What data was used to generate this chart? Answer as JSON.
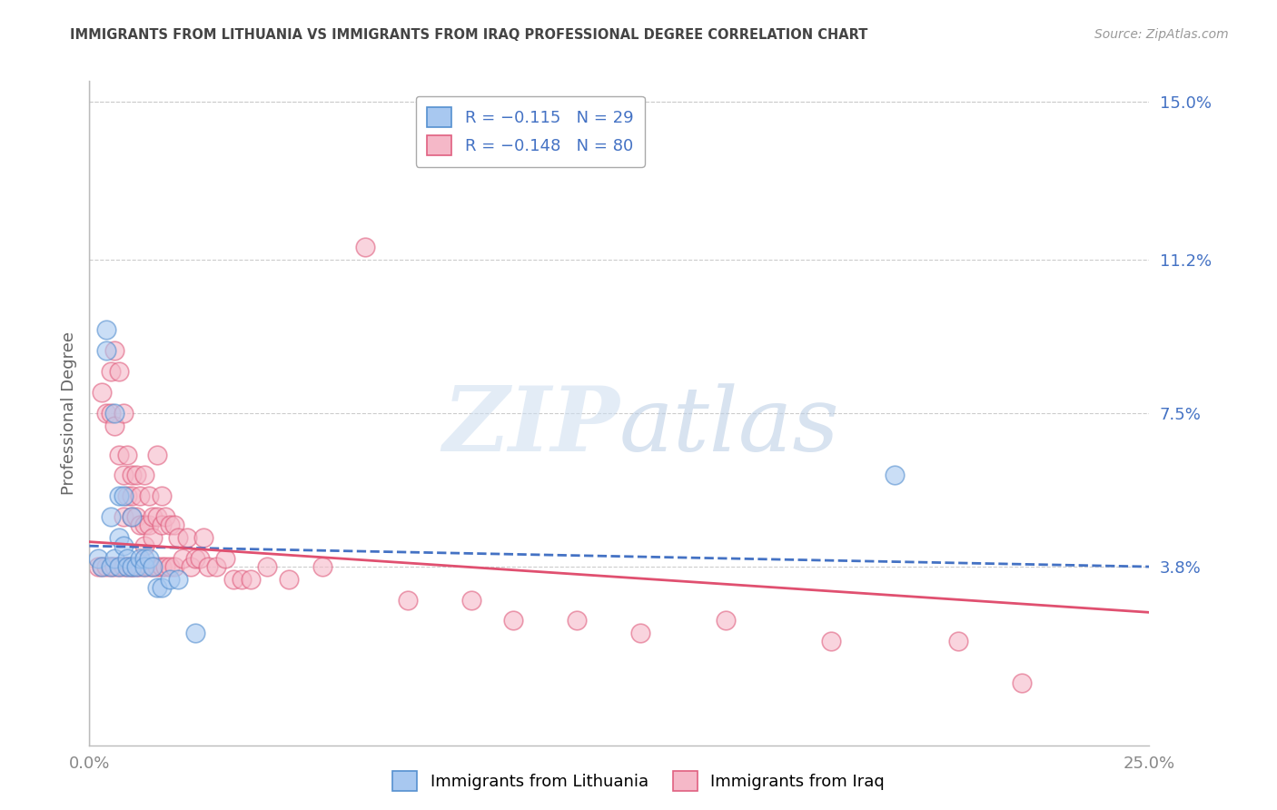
{
  "title": "IMMIGRANTS FROM LITHUANIA VS IMMIGRANTS FROM IRAQ PROFESSIONAL DEGREE CORRELATION CHART",
  "source_text": "Source: ZipAtlas.com",
  "ylabel": "Professional Degree",
  "xlim": [
    0.0,
    0.25
  ],
  "ylim": [
    -0.005,
    0.155
  ],
  "ytick_labels": [
    "15.0%",
    "11.2%",
    "7.5%",
    "3.8%"
  ],
  "ytick_values": [
    0.15,
    0.112,
    0.075,
    0.038
  ],
  "xtick_labels": [
    "0.0%",
    "25.0%"
  ],
  "xtick_values": [
    0.0,
    0.25
  ],
  "series_lithuania": {
    "color": "#a8c8f0",
    "edge_color": "#5590d0",
    "R": -0.115,
    "N": 29,
    "x": [
      0.002,
      0.003,
      0.004,
      0.004,
      0.005,
      0.005,
      0.006,
      0.006,
      0.007,
      0.007,
      0.007,
      0.008,
      0.008,
      0.009,
      0.009,
      0.01,
      0.01,
      0.011,
      0.012,
      0.013,
      0.013,
      0.014,
      0.015,
      0.016,
      0.017,
      0.019,
      0.021,
      0.025,
      0.19
    ],
    "y": [
      0.04,
      0.038,
      0.095,
      0.09,
      0.038,
      0.05,
      0.075,
      0.04,
      0.055,
      0.045,
      0.038,
      0.043,
      0.055,
      0.04,
      0.038,
      0.05,
      0.038,
      0.038,
      0.04,
      0.04,
      0.038,
      0.04,
      0.038,
      0.033,
      0.033,
      0.035,
      0.035,
      0.022,
      0.06
    ]
  },
  "series_iraq": {
    "color": "#f5b8c8",
    "edge_color": "#e06080",
    "R": -0.148,
    "N": 80,
    "x": [
      0.002,
      0.003,
      0.003,
      0.004,
      0.004,
      0.005,
      0.005,
      0.005,
      0.006,
      0.006,
      0.006,
      0.007,
      0.007,
      0.007,
      0.008,
      0.008,
      0.008,
      0.008,
      0.009,
      0.009,
      0.009,
      0.01,
      0.01,
      0.01,
      0.01,
      0.01,
      0.011,
      0.011,
      0.011,
      0.012,
      0.012,
      0.012,
      0.013,
      0.013,
      0.013,
      0.013,
      0.014,
      0.014,
      0.014,
      0.015,
      0.015,
      0.015,
      0.016,
      0.016,
      0.016,
      0.017,
      0.017,
      0.017,
      0.018,
      0.018,
      0.019,
      0.019,
      0.02,
      0.02,
      0.021,
      0.022,
      0.023,
      0.024,
      0.025,
      0.026,
      0.027,
      0.028,
      0.03,
      0.032,
      0.034,
      0.036,
      0.038,
      0.042,
      0.047,
      0.055,
      0.065,
      0.075,
      0.09,
      0.1,
      0.115,
      0.13,
      0.15,
      0.175,
      0.205,
      0.22
    ],
    "y": [
      0.038,
      0.08,
      0.038,
      0.075,
      0.038,
      0.085,
      0.075,
      0.038,
      0.09,
      0.072,
      0.038,
      0.085,
      0.065,
      0.038,
      0.075,
      0.06,
      0.05,
      0.038,
      0.065,
      0.055,
      0.038,
      0.06,
      0.055,
      0.05,
      0.038,
      0.038,
      0.06,
      0.05,
      0.038,
      0.055,
      0.048,
      0.038,
      0.06,
      0.048,
      0.043,
      0.038,
      0.055,
      0.048,
      0.038,
      0.05,
      0.045,
      0.038,
      0.065,
      0.05,
      0.038,
      0.055,
      0.048,
      0.038,
      0.05,
      0.038,
      0.048,
      0.038,
      0.048,
      0.038,
      0.045,
      0.04,
      0.045,
      0.038,
      0.04,
      0.04,
      0.045,
      0.038,
      0.038,
      0.04,
      0.035,
      0.035,
      0.035,
      0.038,
      0.035,
      0.038,
      0.115,
      0.03,
      0.03,
      0.025,
      0.025,
      0.022,
      0.025,
      0.02,
      0.02,
      0.01
    ]
  },
  "trendline_lithuania": {
    "color": "#4472c4",
    "x_start": 0.0,
    "x_end": 0.25,
    "y_start": 0.043,
    "y_end": 0.038,
    "linestyle": "--"
  },
  "trendline_iraq": {
    "color": "#e05070",
    "x_start": 0.0,
    "x_end": 0.25,
    "y_start": 0.044,
    "y_end": 0.027,
    "linestyle": "-"
  },
  "watermark_zip": "ZIP",
  "watermark_atlas": "atlas",
  "background_color": "#ffffff",
  "grid_color": "#cccccc",
  "title_color": "#444444",
  "axis_label_color": "#666666",
  "tick_label_color_y": "#4472c4",
  "tick_label_color_x": "#888888",
  "legend_lith_label": "R = −0.115   N = 29",
  "legend_iraq_label": "R = −0.148   N = 80",
  "bottom_legend_lith": "Immigrants from Lithuania",
  "bottom_legend_iraq": "Immigrants from Iraq"
}
